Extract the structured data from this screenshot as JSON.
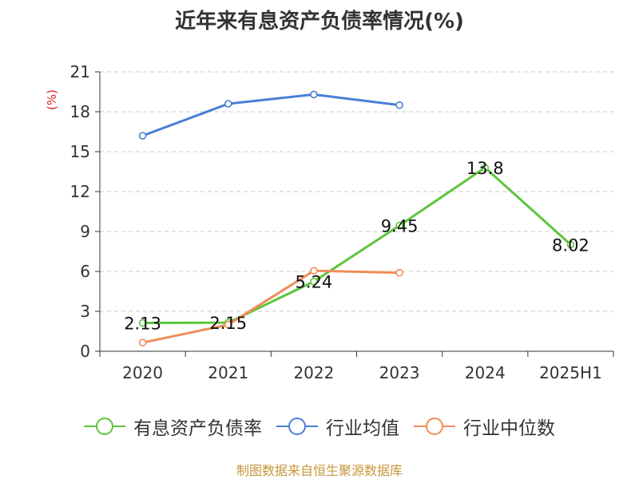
{
  "chart_data": {
    "type": "line",
    "title": "近年来有息资产负债率情况(%)",
    "ylabel": "(%)",
    "categories": [
      "2020",
      "2021",
      "2022",
      "2023",
      "2024",
      "2025H1"
    ],
    "ylim": [
      0,
      21
    ],
    "yticks": [
      0,
      3,
      6,
      9,
      12,
      15,
      18,
      21
    ],
    "grid": true,
    "legend_position": "bottom",
    "series": [
      {
        "name": "有息资产负债率",
        "color": "#5cc63b",
        "values": [
          2.13,
          2.15,
          5.24,
          9.45,
          13.8,
          8.02
        ],
        "labels": [
          "2.13",
          "2.15",
          "5.24",
          "9.45",
          "13.8",
          "8.02"
        ]
      },
      {
        "name": "行业均值",
        "color": "#4a7fd6",
        "values": [
          16.2,
          18.6,
          19.3,
          18.5,
          null,
          null
        ]
      },
      {
        "name": "行业中位数",
        "color": "#f08c5a",
        "values": [
          0.65,
          2.0,
          6.05,
          5.9,
          null,
          null
        ]
      }
    ]
  },
  "source": "制图数据来自恒生聚源数据库"
}
